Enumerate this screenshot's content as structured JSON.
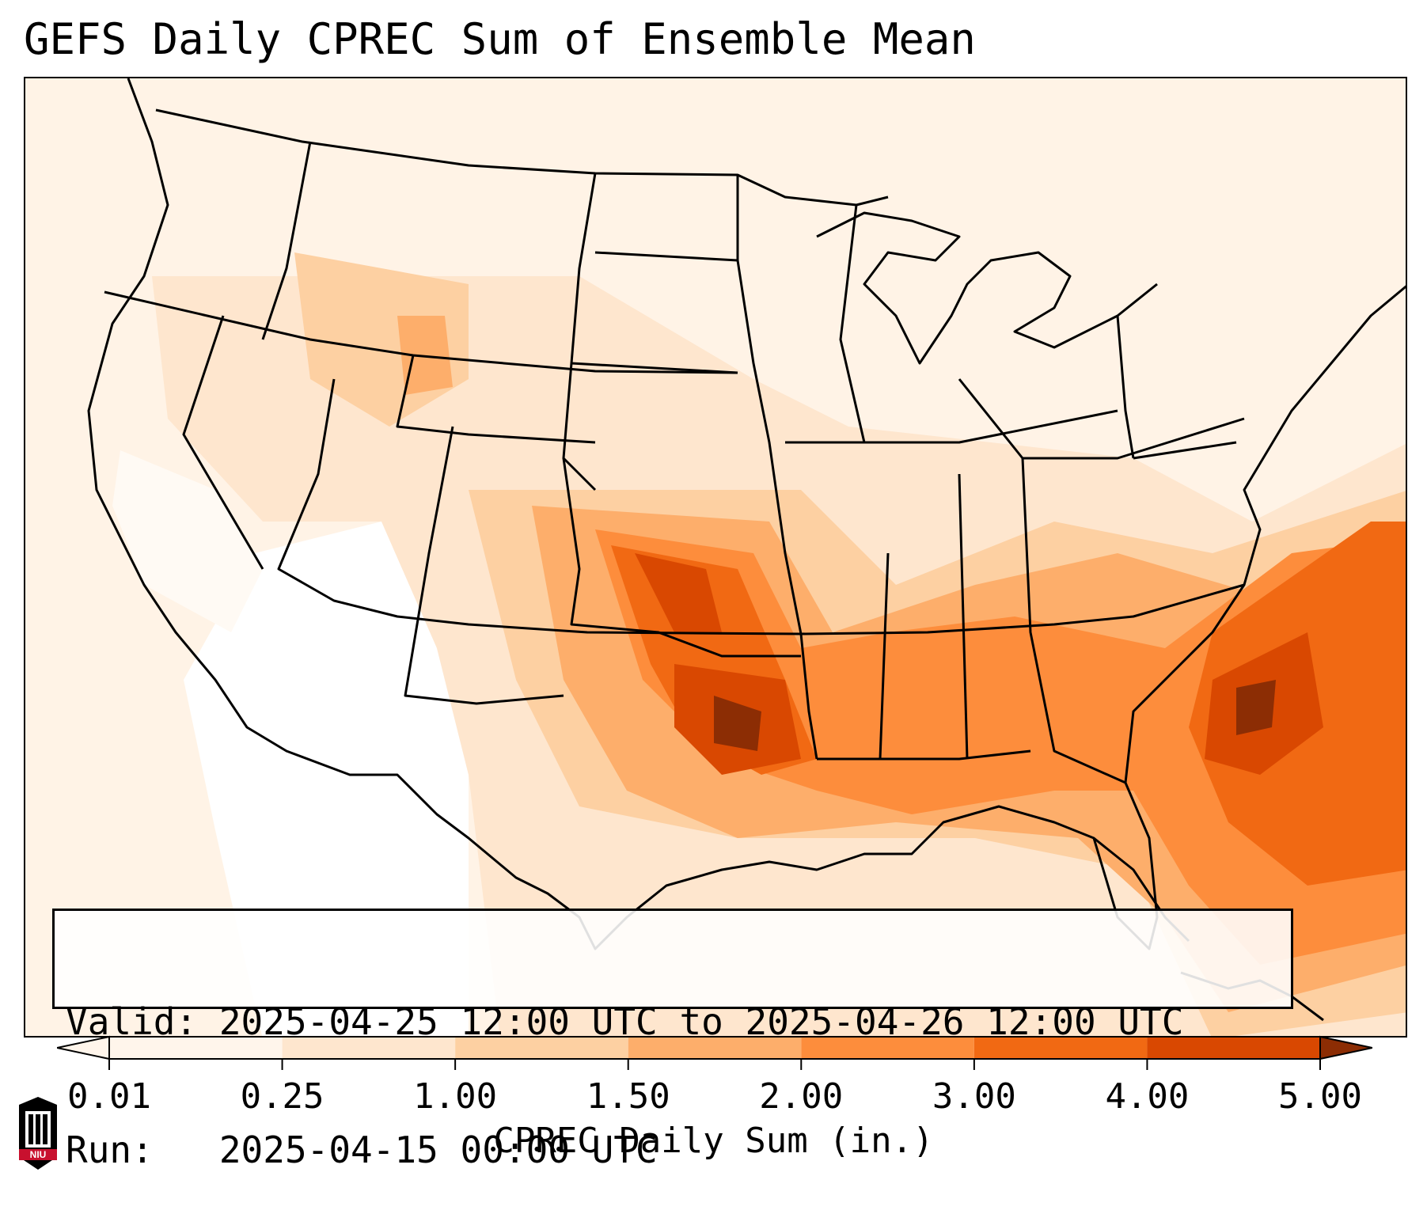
{
  "title": "GEFS Daily CPREC Sum of Ensemble Mean",
  "valid_line": "Valid: 2025-04-25 12:00 UTC to 2025-04-26 12:00 UTC",
  "run_line": "Run:   2025-04-15 00:00 UTC",
  "colorbar": {
    "label": "CPREC Daily Sum (in.)",
    "ticks": [
      "0.01",
      "0.25",
      "1.00",
      "1.50",
      "2.00",
      "3.00",
      "4.00",
      "5.00"
    ],
    "colors": [
      "#fff5eb",
      "#fee6ce",
      "#fdd0a2",
      "#fdae6b",
      "#fd8d3c",
      "#f16913",
      "#d94801",
      "#8c2d04"
    ],
    "extend": "both"
  },
  "logo": {
    "text": "NIU",
    "icon": "niu-logo"
  },
  "map": {
    "projection": "lambert-conformal",
    "region": "contiguous-united-states",
    "colors": {
      "background": "#fff7ec",
      "dry": "#ffffff",
      "light": "#fee6ce",
      "moderate": "#fdd0a2",
      "heavy": "#fdae6b",
      "very_heavy": "#fd8d3c",
      "intense": "#f16913",
      "extreme": "#d94801",
      "max": "#8c2d04"
    }
  }
}
